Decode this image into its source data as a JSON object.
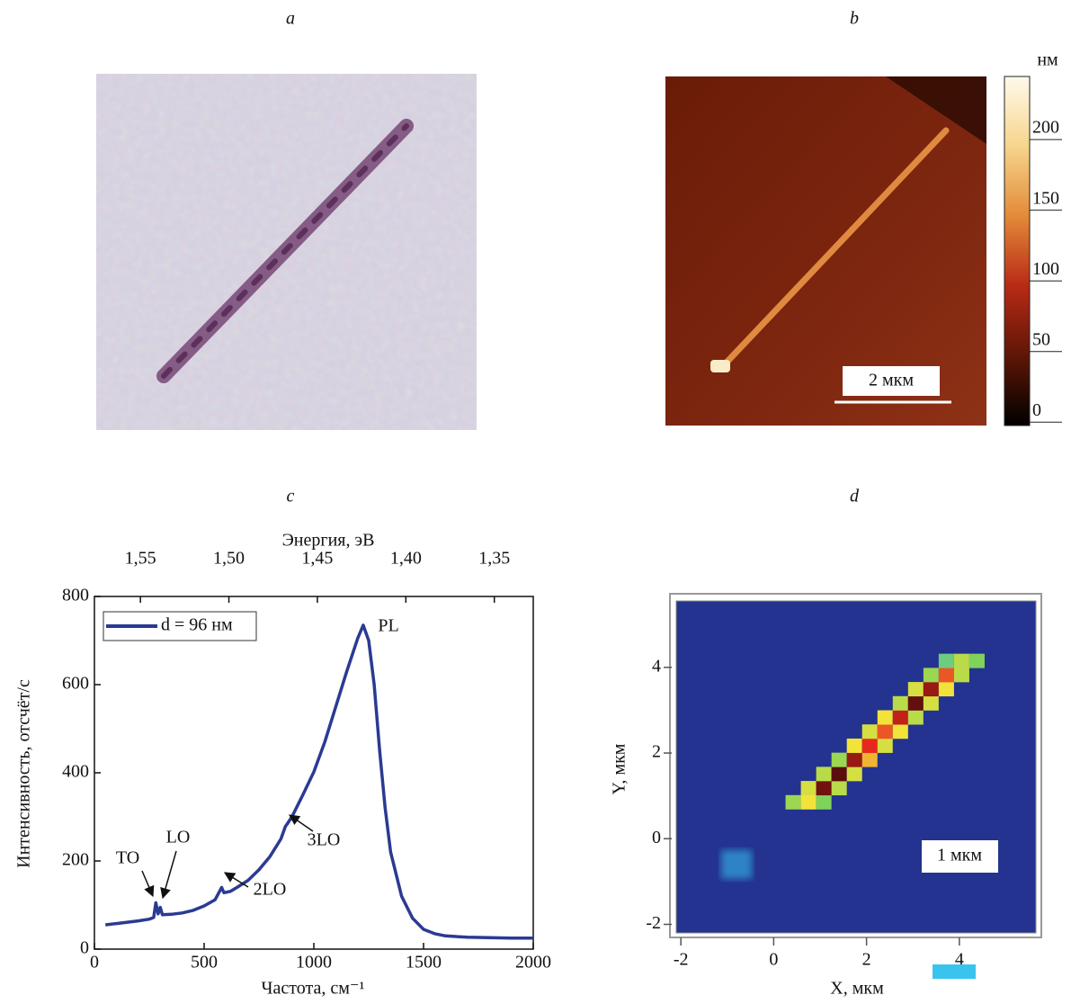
{
  "chart_data": [
    {
      "type": "image",
      "panel": "a"
    },
    {
      "type": "image",
      "panel": "b",
      "scale_bar": "2 мкм",
      "colorbar": {
        "label": "нм",
        "lim": [
          -10,
          237
        ],
        "ticks": [
          0,
          50,
          100,
          150,
          200
        ],
        "colors": [
          "#000000",
          "#5e1606",
          "#b82a16",
          "#e38a38",
          "#f6d58c",
          "#fff9ec"
        ]
      }
    },
    {
      "type": "line",
      "panel": "c",
      "x_label": "Частота, см⁻¹",
      "y_label": "Интенсивность, отсчёт/с",
      "x2_label": "Энергия, эВ",
      "xlim": [
        0,
        2000
      ],
      "xticks": [
        0,
        500,
        1000,
        1500,
        2000
      ],
      "ylim": [
        0,
        800
      ],
      "yticks": [
        0,
        200,
        400,
        600,
        800
      ],
      "x2lim": [
        1.576,
        1.328
      ],
      "x2ticks": [
        {
          "value": 1.55,
          "label": "1,55"
        },
        {
          "value": 1.5,
          "label": "1,50"
        },
        {
          "value": 1.45,
          "label": "1,45"
        },
        {
          "value": 1.4,
          "label": "1,40"
        },
        {
          "value": 1.35,
          "label": "1,35"
        }
      ],
      "legend": "upper left",
      "series": [
        {
          "name": "d = 96 нм",
          "color": "#2b3a92",
          "x": [
            50,
            100,
            150,
            200,
            250,
            270,
            280,
            290,
            300,
            310,
            350,
            400,
            450,
            500,
            550,
            580,
            590,
            620,
            650,
            700,
            750,
            800,
            850,
            870,
            880,
            900,
            950,
            1000,
            1050,
            1100,
            1150,
            1200,
            1225,
            1250,
            1275,
            1300,
            1325,
            1350,
            1400,
            1450,
            1500,
            1550,
            1600,
            1700,
            1800,
            1900,
            2000
          ],
          "values": [
            55,
            58,
            61,
            64,
            68,
            72,
            105,
            80,
            95,
            78,
            79,
            82,
            88,
            98,
            112,
            140,
            128,
            131,
            140,
            156,
            180,
            210,
            250,
            278,
            285,
            300,
            350,
            402,
            470,
            550,
            630,
            705,
            735,
            700,
            600,
            450,
            320,
            220,
            120,
            70,
            45,
            35,
            30,
            27,
            26,
            25,
            25
          ]
        }
      ],
      "annotations": [
        "TO",
        "LO",
        "2LO",
        "3LO",
        "PL"
      ]
    },
    {
      "type": "heatmap",
      "panel": "d",
      "x_label": "X, мкм",
      "y_label": "Y, мкм",
      "scale_bar": "1 мкм",
      "xlim": [
        -2.1,
        5.65
      ],
      "xticks": [
        -2,
        0,
        2,
        4
      ],
      "ylim": [
        -2.2,
        5.55
      ],
      "yticks": [
        -2,
        0,
        2,
        4
      ],
      "zlim": [
        0,
        1
      ],
      "colors": [
        "#23338f",
        "#35b8ea",
        "#7fd35a",
        "#f2e33a",
        "#e8281c",
        "#4a0a0a"
      ],
      "x": [
        0.42,
        0.75,
        1.08,
        0.75,
        1.08,
        1.41,
        1.08,
        1.41,
        1.74,
        1.41,
        1.74,
        2.07,
        1.74,
        2.07,
        2.4,
        2.07,
        2.4,
        2.73,
        2.4,
        2.73,
        3.06,
        2.73,
        3.06,
        3.39,
        3.06,
        3.39,
        3.72,
        3.39,
        3.72,
        4.05,
        3.72,
        4.05,
        4.38,
        -0.8
      ],
      "y": [
        0.85,
        0.85,
        0.85,
        1.18,
        1.18,
        1.18,
        1.51,
        1.51,
        1.51,
        1.84,
        1.84,
        1.84,
        2.17,
        2.17,
        2.17,
        2.5,
        2.5,
        2.5,
        2.83,
        2.83,
        2.83,
        3.16,
        3.16,
        3.16,
        3.49,
        3.49,
        3.49,
        3.82,
        3.82,
        3.82,
        4.15,
        4.15,
        4.15,
        -0.6
      ],
      "values": [
        0.45,
        0.6,
        0.4,
        0.55,
        0.95,
        0.5,
        0.5,
        0.98,
        0.55,
        0.45,
        0.9,
        0.65,
        0.6,
        0.8,
        0.55,
        0.55,
        0.75,
        0.6,
        0.6,
        0.85,
        0.5,
        0.5,
        0.97,
        0.55,
        0.55,
        0.9,
        0.6,
        0.45,
        0.75,
        0.5,
        0.35,
        0.5,
        0.4,
        0.12
      ]
    }
  ]
}
